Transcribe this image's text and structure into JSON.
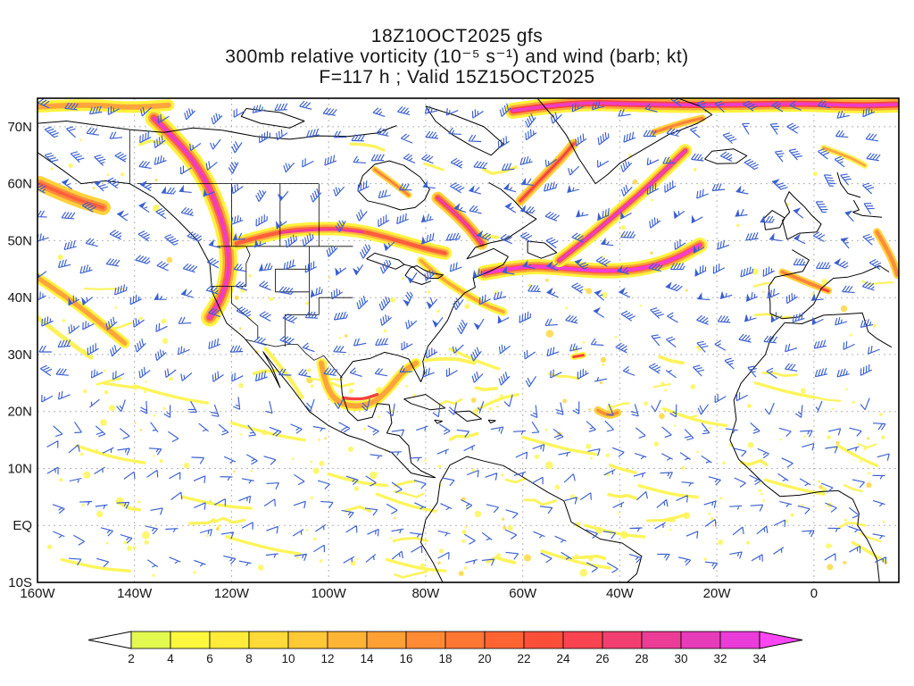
{
  "title": {
    "line1": "18Z10OCT2025 gfs",
    "line2": "300mb relative vorticity (10⁻⁵ s⁻¹) and wind (barb; kt)",
    "line3": "F=117 h ; Valid 15Z15OCT2025"
  },
  "background": "#ffffff",
  "coastline_color": "#000000",
  "frame_color": "#000000",
  "chart_data": {
    "type": "heatmap",
    "model": "gfs",
    "run": "18Z10OCT2025",
    "field": "300mb relative vorticity and wind barbs",
    "units": {
      "vorticity": "10⁻⁵ s⁻¹",
      "wind": "kt"
    },
    "forecast_hour": "F=117 h",
    "valid": "15Z15OCT2025",
    "projection": "latlon",
    "lon_range": [
      -160,
      17.5
    ],
    "lat_range": [
      -10,
      75
    ],
    "x_ticks": [
      {
        "lon": -160,
        "label": "160W"
      },
      {
        "lon": -140,
        "label": "140W"
      },
      {
        "lon": -120,
        "label": "120W"
      },
      {
        "lon": -100,
        "label": "100W"
      },
      {
        "lon": -80,
        "label": "80W"
      },
      {
        "lon": -60,
        "label": "60W"
      },
      {
        "lon": -40,
        "label": "40W"
      },
      {
        "lon": -20,
        "label": "20W"
      },
      {
        "lon": 0,
        "label": "0"
      }
    ],
    "y_ticks": [
      {
        "lat": 70,
        "label": "70N"
      },
      {
        "lat": 60,
        "label": "60N"
      },
      {
        "lat": 50,
        "label": "50N"
      },
      {
        "lat": 40,
        "label": "40N"
      },
      {
        "lat": 30,
        "label": "30N"
      },
      {
        "lat": 20,
        "label": "20N"
      },
      {
        "lat": 10,
        "label": "10N"
      },
      {
        "lat": 0,
        "label": "EQ"
      },
      {
        "lat": -10,
        "label": "10S"
      }
    ],
    "grid": {
      "lon_step": 20,
      "lat_step": 10,
      "color": "#a8a8a8",
      "style": "dashed"
    },
    "colorbar": {
      "levels": [
        2,
        4,
        6,
        8,
        10,
        12,
        14,
        16,
        18,
        20,
        22,
        24,
        26,
        28,
        30,
        32,
        34
      ],
      "colors": [
        "#e2fa50",
        "#fdf83e",
        "#ffec3a",
        "#ffda38",
        "#ffc837",
        "#ffb436",
        "#ffa035",
        "#ff8c34",
        "#ff7833",
        "#ff6432",
        "#fc4f3a",
        "#f84450",
        "#f23f72",
        "#ec3d96",
        "#e63cba",
        "#ea3cd8"
      ],
      "under_color": "#ffffff",
      "over_color": "#ff46f5"
    },
    "wind": {
      "barb_color": "#3a5fd0",
      "units": "kt"
    },
    "speckles": {
      "count": 260,
      "colors": [
        "#fdf660",
        "#ffd94e"
      ]
    },
    "squiggles": {
      "count": 46,
      "color": "#fcf35c"
    },
    "vorticity_features": [
      {
        "name": "arctic-band-west",
        "pts": [
          [
            -160,
            73.5
          ],
          [
            -150,
            74
          ],
          [
            -141,
            73.3
          ],
          [
            -133,
            73.8
          ]
        ],
        "layers": [
          [
            13,
            "#fef23c"
          ],
          [
            6,
            "#ffa53c"
          ]
        ]
      },
      {
        "name": "arctic-band-east",
        "pts": [
          [
            -62,
            72.8
          ],
          [
            -50,
            74.3
          ],
          [
            -38,
            74
          ],
          [
            -26,
            73.8
          ],
          [
            -14,
            73.9
          ],
          [
            -2,
            74.1
          ],
          [
            8,
            73.7
          ],
          [
            17,
            73.9
          ]
        ],
        "layers": [
          [
            18,
            "#fef23c"
          ],
          [
            12,
            "#ffa53c"
          ],
          [
            7,
            "#f8463c"
          ],
          [
            3.6,
            "#ee3cc8"
          ]
        ]
      },
      {
        "name": "aleutian-blob",
        "pts": [
          [
            -159.5,
            60
          ],
          [
            -153,
            57.5
          ],
          [
            -146.5,
            55.8
          ]
        ],
        "layers": [
          [
            17,
            "#ffd23c"
          ],
          [
            9,
            "#ff8c3c"
          ],
          [
            3.6,
            "#ff5f3c"
          ]
        ]
      },
      {
        "name": "pacific-west-band",
        "pts": [
          [
            -160,
            43.5
          ],
          [
            -153,
            39.5
          ],
          [
            -147,
            35.5
          ],
          [
            -142,
            32
          ]
        ],
        "layers": [
          [
            11,
            "#fef23c"
          ],
          [
            5.4,
            "#ffa53c"
          ]
        ]
      },
      {
        "name": "pacific-west-band-2",
        "pts": [
          [
            -160,
            36.5
          ],
          [
            -154,
            32.5
          ],
          [
            -149,
            29.5
          ]
        ],
        "layers": [
          [
            5,
            "#fdf25a"
          ]
        ]
      },
      {
        "name": "west-coast-trough",
        "pts": [
          [
            -136,
            71.5
          ],
          [
            -130,
            66.5
          ],
          [
            -125.5,
            61
          ],
          [
            -122.5,
            55
          ],
          [
            -120.8,
            49.5
          ],
          [
            -120.5,
            44.5
          ],
          [
            -122,
            40
          ],
          [
            -124.5,
            36.5
          ]
        ],
        "layers": [
          [
            20,
            "#fef23c"
          ],
          [
            13,
            "#ffaa3c"
          ],
          [
            8,
            "#ff5f3c"
          ],
          [
            4.2,
            "#ef3cc8"
          ]
        ]
      },
      {
        "name": "canada-zonal-band",
        "pts": [
          [
            -119,
            49.5
          ],
          [
            -111,
            51.5
          ],
          [
            -103,
            52.2
          ],
          [
            -95,
            52
          ],
          [
            -88,
            50.6
          ],
          [
            -81,
            48.8
          ],
          [
            -76,
            47.8
          ]
        ],
        "layers": [
          [
            15,
            "#fef23c"
          ],
          [
            9,
            "#ffb43c"
          ],
          [
            4.6,
            "#ff5f3c"
          ]
        ]
      },
      {
        "name": "canada-zonal-core",
        "pts": [
          [
            -110,
            51.4
          ],
          [
            -101,
            52.2
          ],
          [
            -93,
            51.5
          ]
        ],
        "layers": [
          [
            2.8,
            "#f03c96"
          ]
        ]
      },
      {
        "name": "hudson-streak",
        "pts": [
          [
            -90.5,
            62.5
          ],
          [
            -86.5,
            60
          ],
          [
            -83.5,
            58
          ]
        ],
        "layers": [
          [
            7,
            "#ffd23c"
          ],
          [
            2.8,
            "#ff823c"
          ]
        ]
      },
      {
        "name": "quebec-streak",
        "pts": [
          [
            -77.5,
            57.5
          ],
          [
            -73.5,
            54.5
          ],
          [
            -70.5,
            51.8
          ],
          [
            -68.5,
            49.5
          ]
        ],
        "layers": [
          [
            14,
            "#ffd23c"
          ],
          [
            8.5,
            "#ff823c"
          ],
          [
            4.4,
            "#f6413c"
          ],
          [
            2.2,
            "#ee3cc8"
          ]
        ]
      },
      {
        "name": "east-coast-trail",
        "pts": [
          [
            -81,
            46.5
          ],
          [
            -77,
            43.5
          ],
          [
            -72.5,
            41
          ],
          [
            -68,
            38.8
          ],
          [
            -64,
            37.5
          ]
        ],
        "layers": [
          [
            9,
            "#fef23c"
          ],
          [
            3.8,
            "#ffa53c"
          ]
        ]
      },
      {
        "name": "davis-strait-streak",
        "pts": [
          [
            -60.5,
            57
          ],
          [
            -56,
            61
          ],
          [
            -52,
            64.5
          ],
          [
            -49.5,
            67
          ]
        ],
        "layers": [
          [
            11,
            "#ffd23c"
          ],
          [
            6,
            "#ff8c3c"
          ],
          [
            2.6,
            "#f6413c"
          ]
        ]
      },
      {
        "name": "greenland-east-streak",
        "pts": [
          [
            -33,
            69
          ],
          [
            -28,
            70.5
          ],
          [
            -23,
            71.5
          ]
        ],
        "layers": [
          [
            8,
            "#ffd23c"
          ],
          [
            3.4,
            "#ff823c"
          ]
        ]
      },
      {
        "name": "atlantic-jet-45n",
        "pts": [
          [
            -68,
            44.3
          ],
          [
            -60,
            45.6
          ],
          [
            -52,
            45.2
          ],
          [
            -44,
            44.6
          ],
          [
            -36,
            44.9
          ],
          [
            -29,
            46.6
          ],
          [
            -23.5,
            49.2
          ]
        ],
        "layers": [
          [
            17,
            "#fef23c"
          ],
          [
            11,
            "#ffa53c"
          ],
          [
            6.5,
            "#ff5f3c"
          ],
          [
            3.8,
            "#f73cd2"
          ]
        ]
      },
      {
        "name": "atlantic-arc-iceland",
        "pts": [
          [
            -52.5,
            46.5
          ],
          [
            -46.5,
            50.5
          ],
          [
            -41,
            54.5
          ],
          [
            -35.5,
            58.5
          ],
          [
            -30.5,
            62.5
          ],
          [
            -26.5,
            65.8
          ]
        ],
        "layers": [
          [
            15,
            "#fef23c"
          ],
          [
            9.5,
            "#ffb43c"
          ],
          [
            5.6,
            "#f84d50"
          ],
          [
            2.8,
            "#ee3cc8"
          ]
        ]
      },
      {
        "name": "gulf-hook",
        "pts": [
          [
            -101.5,
            28.5
          ],
          [
            -100.5,
            23.5
          ],
          [
            -96.5,
            20.8
          ],
          [
            -91,
            21.2
          ],
          [
            -87.5,
            24
          ],
          [
            -85,
            26.8
          ],
          [
            -82,
            28.5
          ]
        ],
        "layers": [
          [
            11,
            "#fef23c"
          ],
          [
            6,
            "#ffa53c"
          ]
        ]
      },
      {
        "name": "gulf-hook-core",
        "pts": [
          [
            -97,
            22.4
          ],
          [
            -93.5,
            22
          ],
          [
            -90,
            23
          ]
        ],
        "layers": [
          [
            3.4,
            "#f6413c"
          ]
        ]
      },
      {
        "name": "baja-filament",
        "pts": [
          [
            -113,
            31
          ],
          [
            -108.5,
            26.5
          ],
          [
            -105.5,
            22.5
          ]
        ],
        "layers": [
          [
            4.4,
            "#fdf25a"
          ]
        ]
      },
      {
        "name": "florida-atl-filament",
        "pts": [
          [
            -80,
            29
          ],
          [
            -75,
            29.5
          ],
          [
            -70,
            28.5
          ]
        ],
        "layers": [
          [
            4,
            "#fdf25a"
          ]
        ]
      },
      {
        "name": "central-atlantic-spot",
        "pts": [
          [
            -49.5,
            29.6
          ],
          [
            -47.5,
            29.9
          ]
        ],
        "layers": [
          [
            7,
            "#fef23c"
          ],
          [
            3,
            "#f6413c"
          ]
        ]
      },
      {
        "name": "tropical-atlantic-blob",
        "pts": [
          [
            -44.5,
            20.2
          ],
          [
            -42.5,
            19.2
          ],
          [
            -40.5,
            19.8
          ]
        ],
        "layers": [
          [
            9,
            "#ffd23c"
          ],
          [
            3.6,
            "#ff8c3c"
          ]
        ]
      },
      {
        "name": "iberia-streak",
        "pts": [
          [
            -6.5,
            44.5
          ],
          [
            -1.5,
            42.7
          ],
          [
            3,
            41.2
          ]
        ],
        "layers": [
          [
            8,
            "#ffd23c"
          ],
          [
            3.6,
            "#ff823c"
          ]
        ]
      },
      {
        "name": "iberia-spot",
        "pts": [
          [
            1.6,
            41.5
          ],
          [
            3,
            41.1
          ]
        ],
        "layers": [
          [
            2.4,
            "#f6413c"
          ]
        ]
      },
      {
        "name": "europe-edge-band",
        "pts": [
          [
            13,
            51.5
          ],
          [
            15.8,
            47.5
          ],
          [
            17.2,
            44
          ]
        ],
        "layers": [
          [
            9,
            "#ffd23c"
          ],
          [
            4.4,
            "#ff8c3c"
          ]
        ]
      },
      {
        "name": "norway-streak",
        "pts": [
          [
            2,
            66.3
          ],
          [
            7,
            64.8
          ],
          [
            10.5,
            63.2
          ]
        ],
        "layers": [
          [
            7,
            "#fdf25a"
          ],
          [
            2.8,
            "#ffa53c"
          ]
        ]
      }
    ],
    "filaments": [
      [
        [
          -140,
          24.5
        ],
        [
          -132,
          22.5
        ],
        [
          -125,
          21.5
        ]
      ],
      [
        [
          -120,
          18
        ],
        [
          -112,
          16
        ],
        [
          -105,
          15
        ]
      ],
      [
        [
          -75,
          31
        ],
        [
          -70,
          29
        ],
        [
          -65,
          27.5
        ]
      ],
      [
        [
          -60,
          15.5
        ],
        [
          -52,
          13.5
        ],
        [
          -45,
          12.5
        ]
      ],
      [
        [
          -31,
          20.5
        ],
        [
          -25,
          18.5
        ],
        [
          -18,
          17.5
        ]
      ],
      [
        [
          -10,
          8
        ],
        [
          -4,
          6.5
        ],
        [
          2,
          5.5
        ]
      ],
      [
        [
          -90,
          5.5
        ],
        [
          -84,
          3.5
        ],
        [
          -78,
          2.5
        ]
      ],
      [
        [
          -121,
          -2
        ],
        [
          -113,
          -4
        ],
        [
          -106,
          -5
        ]
      ],
      [
        [
          -56,
          -4.5
        ],
        [
          -49,
          -6.5
        ],
        [
          -42,
          -7.5
        ]
      ],
      [
        [
          -152,
          14
        ],
        [
          -145,
          12
        ],
        [
          -138,
          11
        ]
      ],
      [
        [
          -100,
          9
        ],
        [
          -94,
          7.5
        ],
        [
          -88,
          7
        ]
      ],
      [
        [
          -70,
          20
        ],
        [
          -66,
          22
        ],
        [
          -61,
          23
        ]
      ],
      [
        [
          -36,
          7
        ],
        [
          -30,
          5.5
        ],
        [
          -24,
          5
        ]
      ],
      [
        [
          -12,
          25
        ],
        [
          -6,
          23.5
        ],
        [
          0,
          22.5
        ]
      ],
      [
        [
          -130,
          5
        ],
        [
          -123,
          3.5
        ],
        [
          -116,
          3
        ]
      ],
      [
        [
          -47,
          0
        ],
        [
          -41,
          -1.5
        ],
        [
          -35,
          -2
        ]
      ],
      [
        [
          5,
          14
        ],
        [
          9,
          12
        ],
        [
          13,
          10.5
        ]
      ],
      [
        [
          -155,
          -6
        ],
        [
          -148,
          -7.5
        ],
        [
          -141,
          -8
        ]
      ],
      [
        [
          -88,
          -6
        ],
        [
          -82,
          -7.5
        ],
        [
          -76,
          -8
        ]
      ],
      [
        [
          8,
          -3
        ],
        [
          12,
          -5
        ],
        [
          15,
          -6.5
        ]
      ]
    ]
  }
}
